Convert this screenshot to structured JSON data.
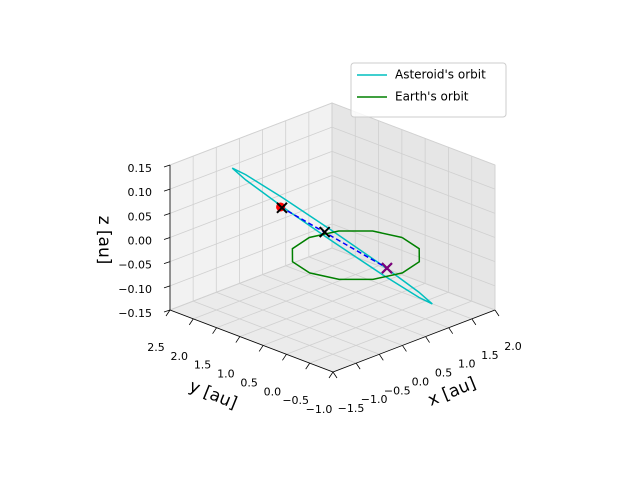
{
  "chart_data": {
    "type": "line3d",
    "xlabel": "x [au]",
    "ylabel": "y [au]",
    "zlabel": "z [au]",
    "xlim": [
      -1.5,
      2.0
    ],
    "ylim": [
      -1.0,
      2.5
    ],
    "zlim": [
      -0.15,
      0.15
    ],
    "xticks": [
      {
        "value": -1.5,
        "label": "−1.5"
      },
      {
        "value": -1,
        "label": "−1.0"
      },
      {
        "value": -0.5,
        "label": "−0.5"
      },
      {
        "value": 0,
        "label": "0.0"
      },
      0.5,
      {
        "value": 1,
        "label": "1.0"
      },
      1.5,
      {
        "value": 2,
        "label": "2.0"
      }
    ],
    "yticks": [
      {
        "value": -1,
        "label": "−1.0"
      },
      {
        "value": -0.5,
        "label": "−0.5"
      },
      {
        "value": 0,
        "label": "0.0"
      },
      0.5,
      {
        "value": 1,
        "label": "1.0"
      },
      1.5,
      {
        "value": 2,
        "label": "2.0"
      },
      2.5
    ],
    "zticks": [
      {
        "value": -0.15,
        "label": "−0.15"
      },
      {
        "value": -0.1,
        "label": "−0.10"
      },
      {
        "value": -0.05,
        "label": "−0.05"
      },
      {
        "value": 0,
        "label": "0.00"
      },
      0.05,
      {
        "value": 0.1,
        "label": "0.10"
      },
      0.15
    ],
    "grid": true,
    "legend": "upper right",
    "series": [
      {
        "name": "Asteroid's orbit",
        "color": "#00bfbf",
        "x": [
          -0.78,
          -0.56,
          -0.115,
          0.44,
          0.955,
          1.29,
          1.36,
          1.14,
          0.695,
          0.14,
          -0.375,
          -0.71,
          -0.78
        ],
        "y": [
          1.88,
          1.81,
          1.47,
          0.945,
          0.38,
          -0.07,
          -0.29,
          -0.22,
          0.12,
          0.645,
          1.21,
          1.66,
          1.88
        ],
        "z": [
          0.14,
          0.121,
          0.07,
          0,
          -0.07,
          -0.121,
          -0.14,
          -0.121,
          -0.07,
          0,
          0.07,
          0.121,
          0.14
        ]
      },
      {
        "name": "Earth's orbit",
        "color": "#008000",
        "x": [
          1,
          0.866,
          0.5,
          0,
          -0.5,
          -0.866,
          -1,
          -0.866,
          -0.5,
          0,
          0.5,
          0.866,
          1
        ],
        "y": [
          0,
          0.5,
          0.866,
          1,
          0.866,
          0.5,
          0,
          -0.5,
          -0.866,
          -1,
          -0.866,
          -0.5,
          0
        ],
        "z": [
          0,
          0,
          0,
          0,
          0,
          0,
          0,
          0,
          0,
          0,
          0,
          0,
          0
        ]
      },
      {
        "color": "#0000ff",
        "linestyle": "dashed",
        "x": [
          -0.54,
          0.38
        ],
        "y": [
          1.08,
          -0.29
        ],
        "z": [
          0.08,
          -0.03
        ]
      }
    ],
    "markers": [
      {
        "marker": "o",
        "color": "#ff0000",
        "x": -0.54,
        "y": 1.08,
        "z": 0.08
      },
      {
        "marker": "x",
        "color": "#000000",
        "x": -0.52,
        "y": 1.07,
        "z": 0.078
      },
      {
        "marker": "x",
        "color": "#000000",
        "x": -0.09,
        "y": 0.58,
        "z": 0.03
      },
      {
        "marker": "x",
        "color": "#000000",
        "x": 0.38,
        "y": -0.29,
        "z": -0.03
      },
      {
        "marker": "x",
        "color": "#800080",
        "x": 0.38,
        "y": -0.29,
        "z": -0.03
      }
    ]
  }
}
